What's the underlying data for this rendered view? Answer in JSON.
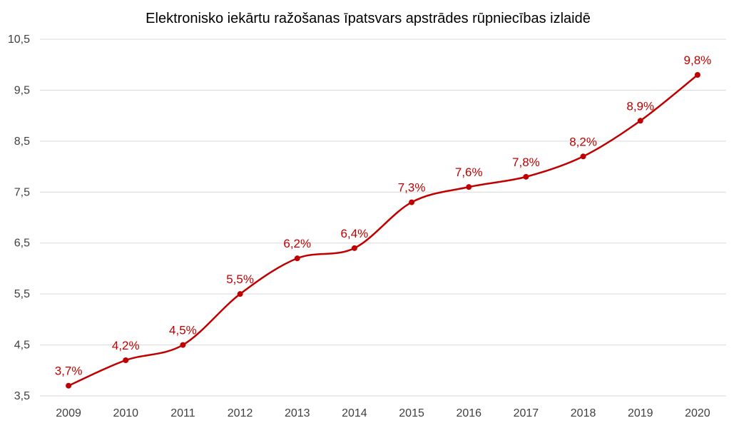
{
  "chart_data": {
    "type": "line",
    "title": "Elektronisko iekārtu ražošanas īpatsvars apstrādes rūpniecības izlaidē",
    "xlabel": "",
    "ylabel": "",
    "categories": [
      "2009",
      "2010",
      "2011",
      "2012",
      "2013",
      "2014",
      "2015",
      "2016",
      "2017",
      "2018",
      "2019",
      "2020"
    ],
    "series": [
      {
        "values": [
          3.7,
          4.2,
          4.5,
          5.5,
          6.2,
          6.4,
          7.3,
          7.6,
          7.8,
          8.2,
          8.9,
          9.8
        ],
        "data_labels": [
          "3,7%",
          "4,2%",
          "4,5%",
          "5,5%",
          "6,2%",
          "6,4%",
          "7,3%",
          "7,6%",
          "7,8%",
          "8,2%",
          "8,9%",
          "9,8%"
        ],
        "color": "#c00000"
      }
    ],
    "ylim": [
      3.5,
      10.5
    ],
    "y_ticks": [
      "3,5",
      "4,5",
      "5,5",
      "6,5",
      "7,5",
      "8,5",
      "9,5",
      "10,5"
    ],
    "grid": true,
    "smooth": true,
    "legend": "none"
  }
}
